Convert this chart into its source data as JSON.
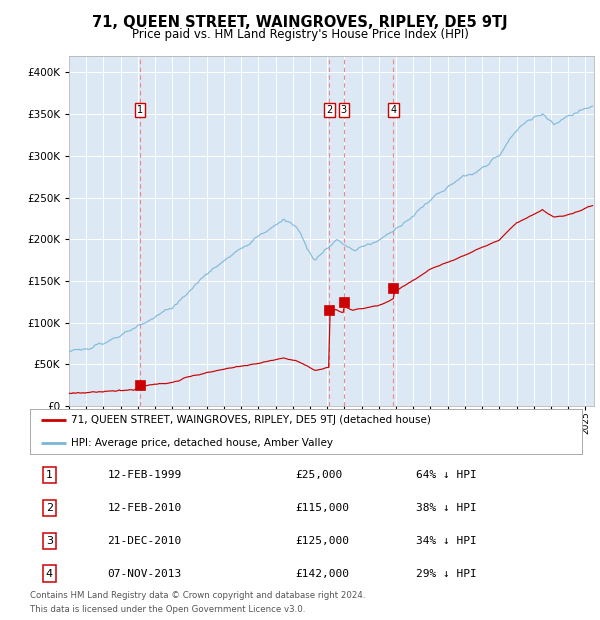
{
  "title": "71, QUEEN STREET, WAINGROVES, RIPLEY, DE5 9TJ",
  "subtitle": "Price paid vs. HM Land Registry's House Price Index (HPI)",
  "title_fontsize": 10.5,
  "subtitle_fontsize": 8.5,
  "background_color": "#ffffff",
  "plot_bg_color": "#dce9f5",
  "legend_entries": [
    "71, QUEEN STREET, WAINGROVES, RIPLEY, DE5 9TJ (detached house)",
    "HPI: Average price, detached house, Amber Valley"
  ],
  "footer_line1": "Contains HM Land Registry data © Crown copyright and database right 2024.",
  "footer_line2": "This data is licensed under the Open Government Licence v3.0.",
  "transactions": [
    {
      "num": 1,
      "date": "12-FEB-1999",
      "price": "£25,000",
      "pct": "64% ↓ HPI",
      "year": 1999.12
    },
    {
      "num": 2,
      "date": "12-FEB-2010",
      "price": "£115,000",
      "pct": "38% ↓ HPI",
      "year": 2010.12
    },
    {
      "num": 3,
      "date": "21-DEC-2010",
      "price": "£125,000",
      "pct": "34% ↓ HPI",
      "year": 2010.96
    },
    {
      "num": 4,
      "date": "07-NOV-2013",
      "price": "£142,000",
      "pct": "29% ↓ HPI",
      "year": 2013.85
    }
  ],
  "ylim_min": 0,
  "ylim_max": 420000,
  "xlim_start": 1995.0,
  "xlim_end": 2025.5,
  "red_color": "#cc0000",
  "blue_color": "#7ab5d8",
  "dashed_color": "#ee8888",
  "grid_color": "#ffffff"
}
